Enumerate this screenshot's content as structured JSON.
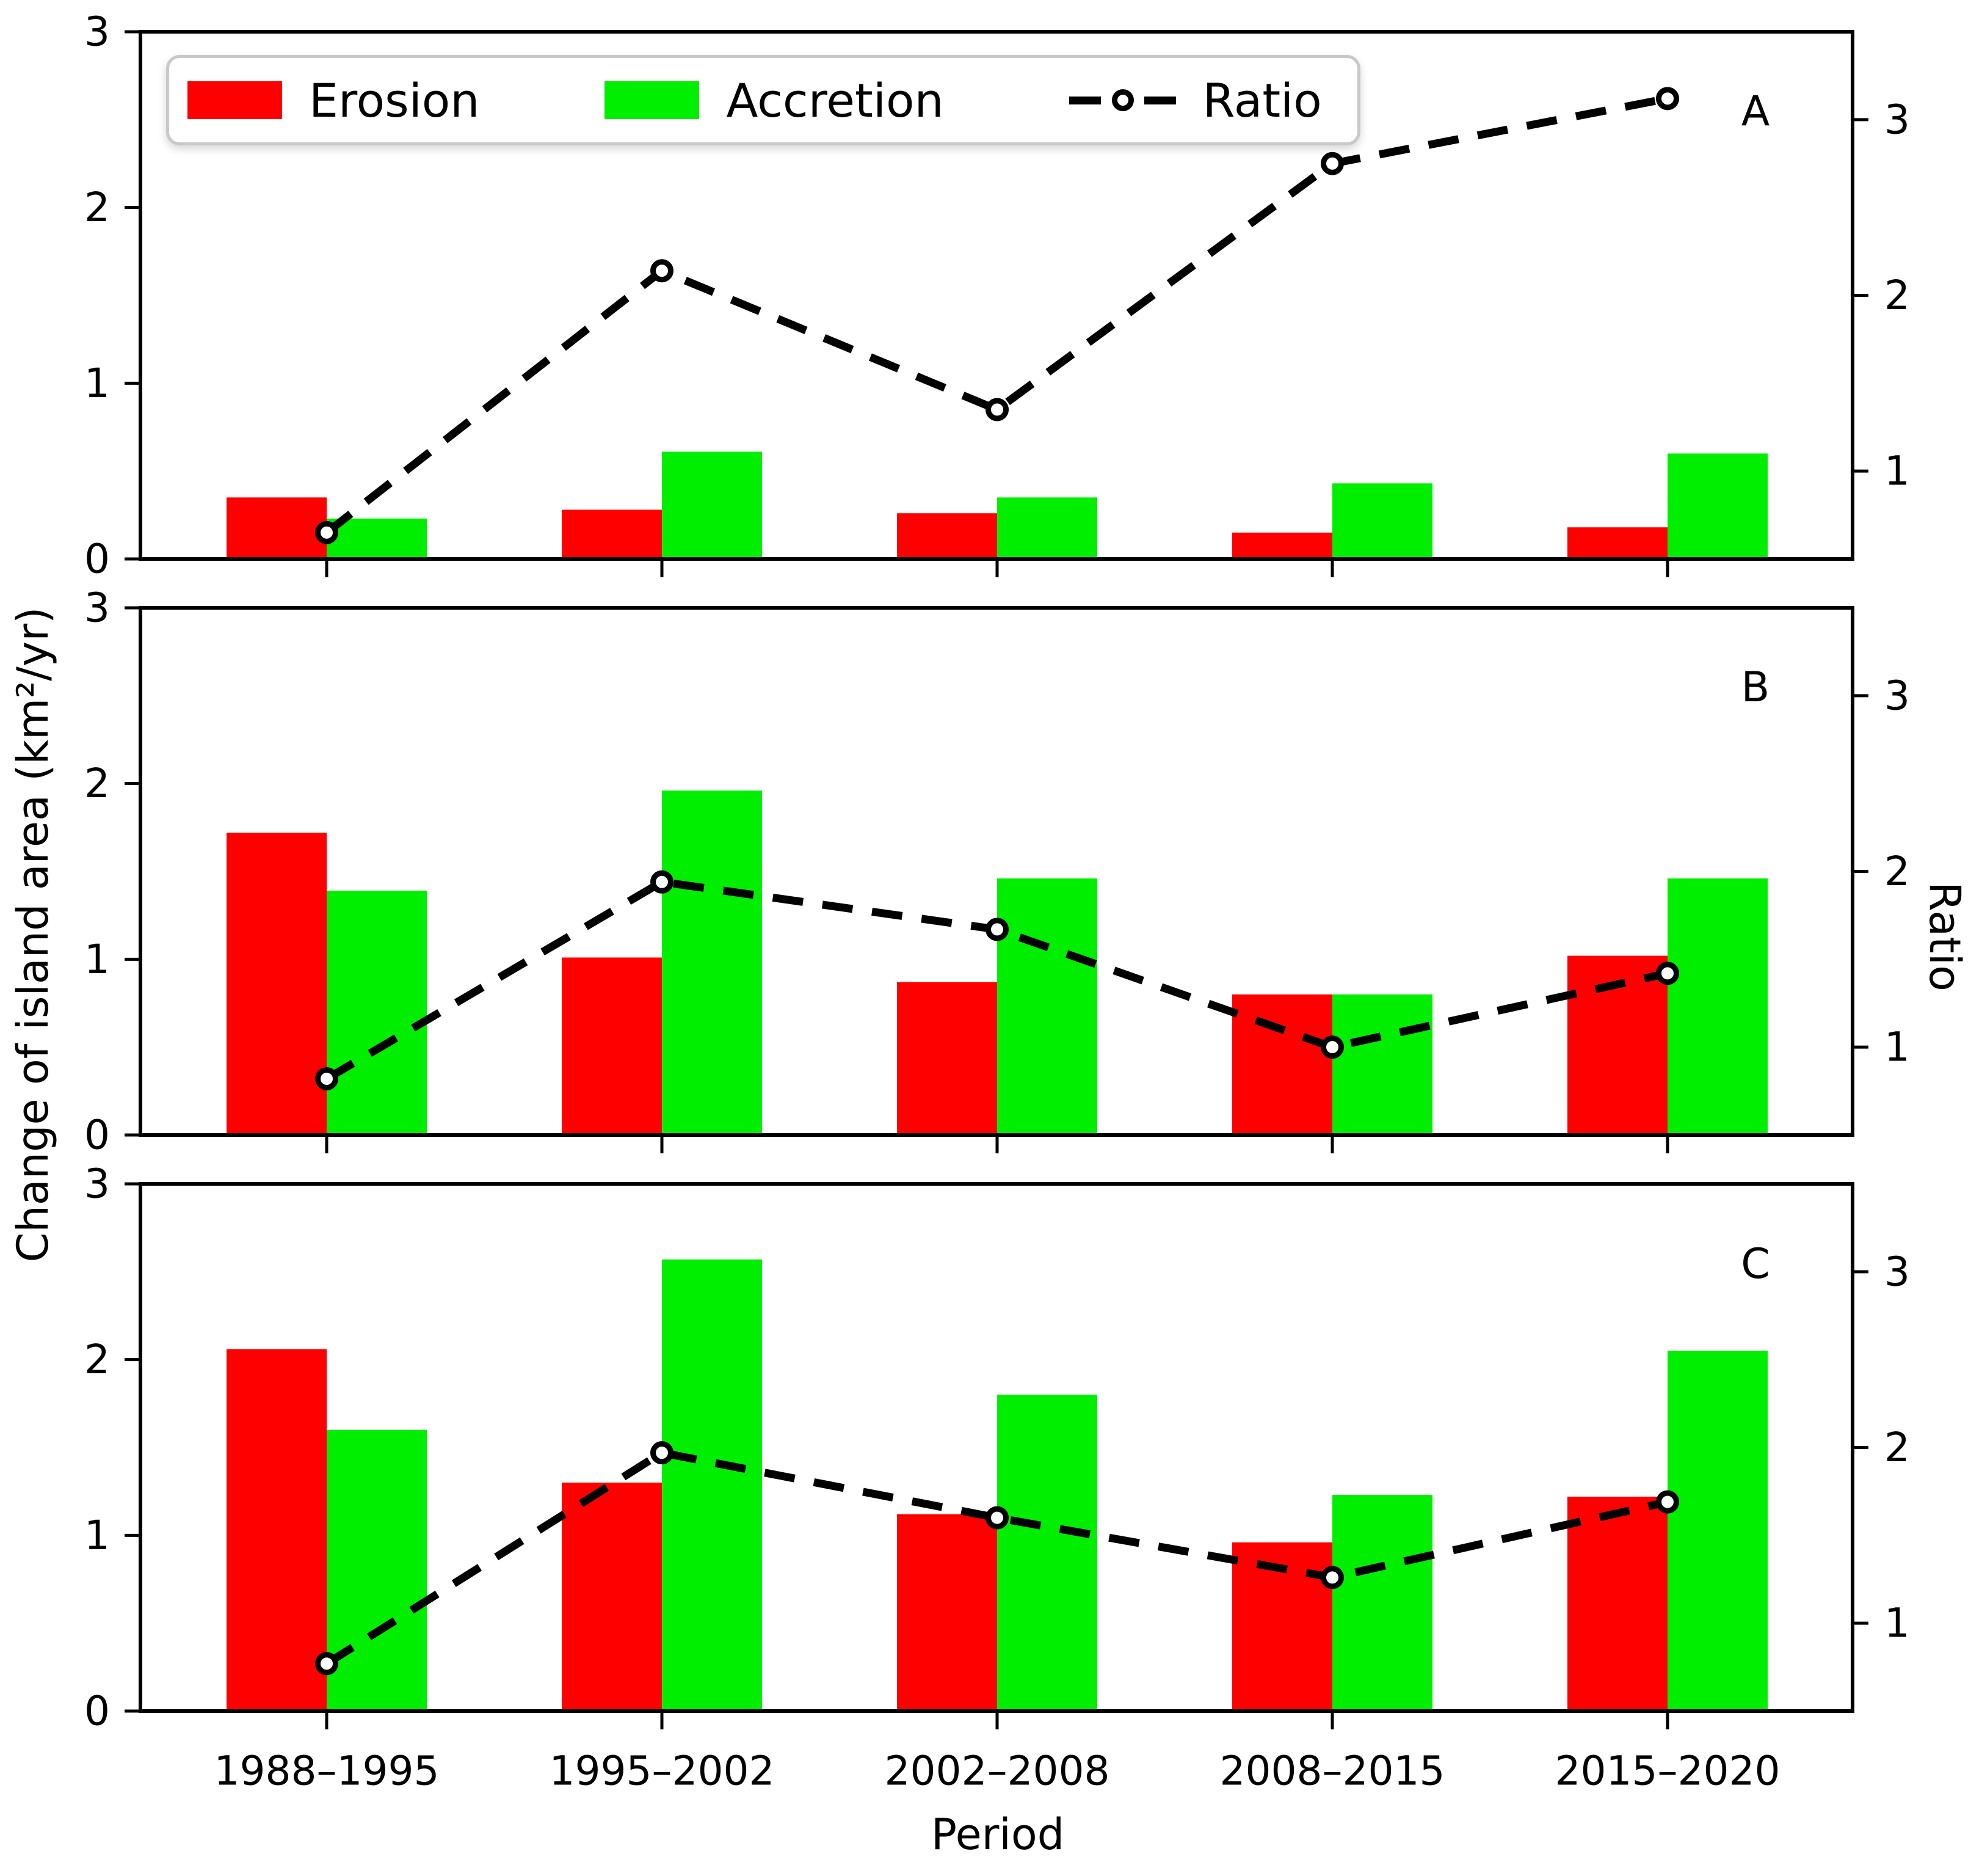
{
  "chart_data": {
    "type": "bar+line",
    "description": "Three stacked subplots (A, B, C) of grouped erosion/accretion bars per period with a dashed ratio line on a secondary axis",
    "categories": [
      "1988–1995",
      "1995–2002",
      "2002–2008",
      "2008–2015",
      "2015–2020"
    ],
    "xlabel": "Period",
    "ylabel_left": "Change of island area (km²/yr)",
    "ylabel_right": "Ratio",
    "ylim_left": [
      0,
      3
    ],
    "yticks_left": [
      0,
      1,
      2,
      3
    ],
    "ylim_right": [
      0.5,
      3.5
    ],
    "yticks_right": [
      1,
      2,
      3
    ],
    "grid": false,
    "legend_position": "upper left (panel A)",
    "legend": [
      {
        "label": "Erosion",
        "type": "swatch",
        "color": "#ff0000"
      },
      {
        "label": "Accretion",
        "type": "swatch",
        "color": "#00ee00"
      },
      {
        "label": "Ratio",
        "type": "dashed-line-with-circle-marker",
        "color": "#000000"
      }
    ],
    "colors": {
      "erosion": "#ff0000",
      "accretion": "#00ee00",
      "ratio_line": "#000000",
      "marker_fill": "#ffffff",
      "axis": "#000000",
      "legend_border": "#c9c9c9"
    },
    "panels": [
      {
        "label": "A",
        "series": [
          {
            "name": "Erosion",
            "axis": "left",
            "values": [
              0.35,
              0.28,
              0.26,
              0.15,
              0.18
            ]
          },
          {
            "name": "Accretion",
            "axis": "left",
            "values": [
              0.23,
              0.61,
              0.35,
              0.43,
              0.6
            ]
          },
          {
            "name": "Ratio",
            "axis": "right",
            "values": [
              0.65,
              2.14,
              1.35,
              2.75,
              3.12
            ]
          }
        ]
      },
      {
        "label": "B",
        "series": [
          {
            "name": "Erosion",
            "axis": "left",
            "values": [
              1.72,
              1.01,
              0.87,
              0.8,
              1.02
            ]
          },
          {
            "name": "Accretion",
            "axis": "left",
            "values": [
              1.39,
              1.96,
              1.46,
              0.8,
              1.46
            ]
          },
          {
            "name": "Ratio",
            "axis": "right",
            "values": [
              0.82,
              1.94,
              1.67,
              1.0,
              1.42
            ]
          }
        ]
      },
      {
        "label": "C",
        "series": [
          {
            "name": "Erosion",
            "axis": "left",
            "values": [
              2.06,
              1.3,
              1.12,
              0.96,
              1.22
            ]
          },
          {
            "name": "Accretion",
            "axis": "left",
            "values": [
              1.6,
              2.57,
              1.8,
              1.23,
              2.05
            ]
          },
          {
            "name": "Ratio",
            "axis": "right",
            "values": [
              0.77,
              1.97,
              1.6,
              1.26,
              1.69
            ]
          }
        ]
      }
    ]
  }
}
